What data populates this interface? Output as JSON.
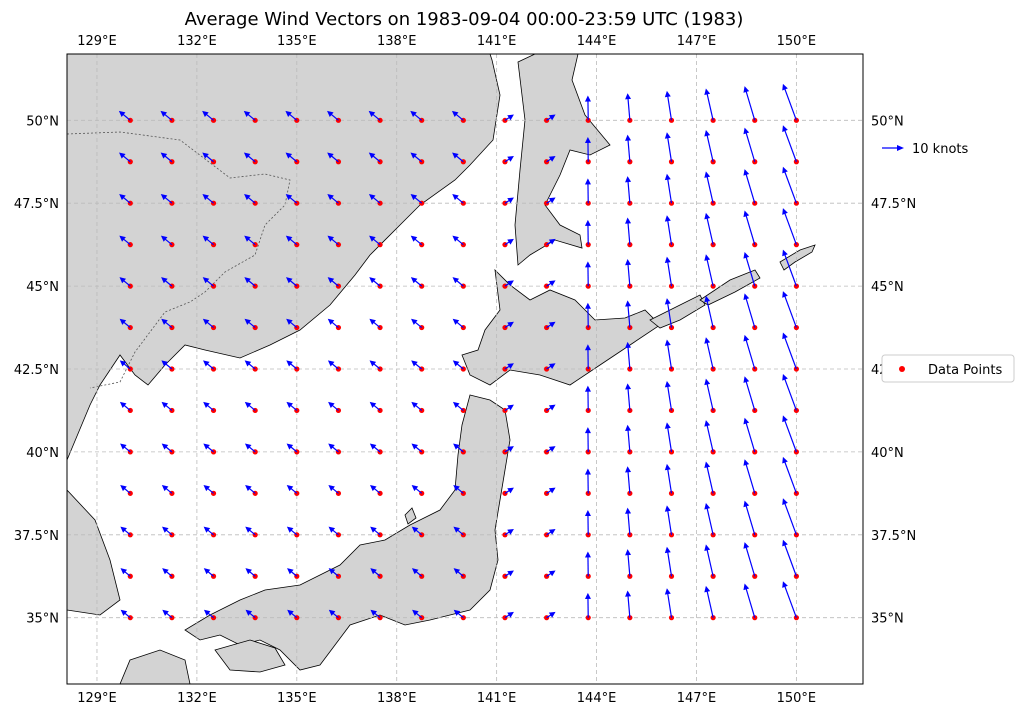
{
  "chart_data": {
    "type": "scatter",
    "title": "Average Wind Vectors on 1983-09-04 00:00-23:59 UTC (1983)",
    "x_range": [
      128.1,
      152.0
    ],
    "y_range": [
      33.0,
      52.0
    ],
    "x_ticks": [
      {
        "value": 129,
        "label": "129°E"
      },
      {
        "value": 132,
        "label": "132°E"
      },
      {
        "value": 135,
        "label": "135°E"
      },
      {
        "value": 138,
        "label": "138°E"
      },
      {
        "value": 141,
        "label": "141°E"
      },
      {
        "value": 144,
        "label": "144°E"
      },
      {
        "value": 147,
        "label": "147°E"
      },
      {
        "value": 150,
        "label": "150°E"
      }
    ],
    "y_ticks": [
      {
        "value": 35,
        "label": "35°N"
      },
      {
        "value": 37.5,
        "label": "37.5°N"
      },
      {
        "value": 40,
        "label": "40°N"
      },
      {
        "value": 42.5,
        "label": "42.5°N"
      },
      {
        "value": 45,
        "label": "45°N"
      },
      {
        "value": 47.5,
        "label": "47.5°N"
      },
      {
        "value": 50,
        "label": "50°N"
      }
    ],
    "grid": true,
    "grid_spacing": {
      "lon": 1.25,
      "lat": 1.25
    },
    "data_extent": {
      "lon": [
        130,
        150
      ],
      "lat": [
        35,
        50
      ]
    },
    "legend": {
      "placement": "right",
      "quiver_key_label": "10 knots",
      "points_label": "Data Points"
    },
    "colors": {
      "vectors": "#0000ff",
      "points": "#ff0000",
      "land": "#d3d3d3",
      "coast": "#000000"
    }
  }
}
